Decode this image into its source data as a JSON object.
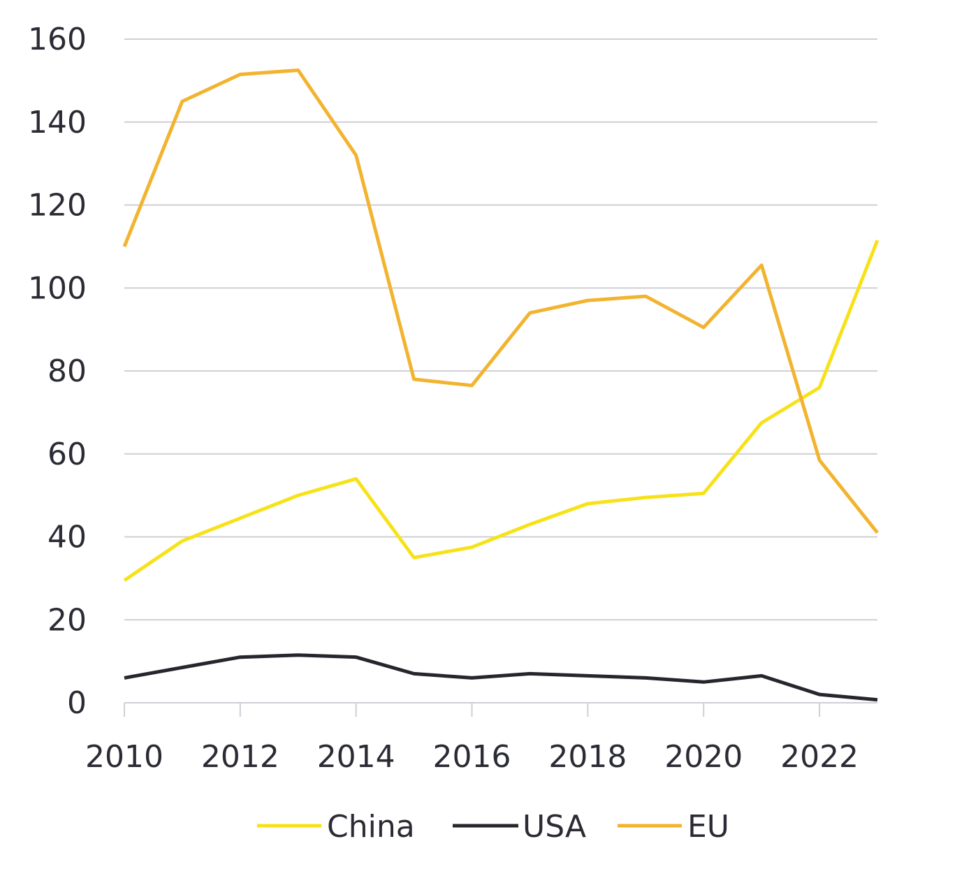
{
  "chart_data": {
    "type": "line",
    "title": "",
    "xlabel": "",
    "ylabel": "",
    "x": [
      2010,
      2011,
      2012,
      2013,
      2014,
      2015,
      2016,
      2017,
      2018,
      2019,
      2020,
      2021,
      2022,
      2023
    ],
    "x_ticks": [
      "2010",
      "2012",
      "2014",
      "2016",
      "2018",
      "2020",
      "2022"
    ],
    "x_tick_values": [
      2010,
      2012,
      2014,
      2016,
      2018,
      2020,
      2022
    ],
    "y_ticks": [
      "0",
      "20",
      "40",
      "60",
      "80",
      "100",
      "120",
      "140",
      "160"
    ],
    "y_tick_values": [
      0,
      20,
      40,
      60,
      80,
      100,
      120,
      140,
      160
    ],
    "xlim": [
      2010,
      2023
    ],
    "ylim": [
      0,
      160
    ],
    "grid": "horizontal",
    "legend_position": "bottom",
    "series": [
      {
        "name": "China",
        "color": "#f7e21a",
        "values": [
          29.5,
          39,
          44.5,
          50,
          54,
          35,
          37.5,
          43,
          48,
          49.5,
          50.5,
          67.5,
          76,
          111.5
        ]
      },
      {
        "name": "USA",
        "color": "#26262e",
        "values": [
          6,
          8.5,
          11,
          11.5,
          11,
          7,
          6,
          7,
          6.5,
          6,
          5,
          6.5,
          2,
          0.7
        ]
      },
      {
        "name": "EU",
        "color": "#f2b430",
        "values": [
          110,
          145,
          151.5,
          152.5,
          132,
          78,
          76.5,
          94,
          97,
          98,
          90.5,
          105.5,
          58.5,
          41
        ]
      }
    ],
    "colors": {
      "grid": "#cfcfd6",
      "axis": "#cfcfd6",
      "text": "#2b2b35"
    }
  }
}
